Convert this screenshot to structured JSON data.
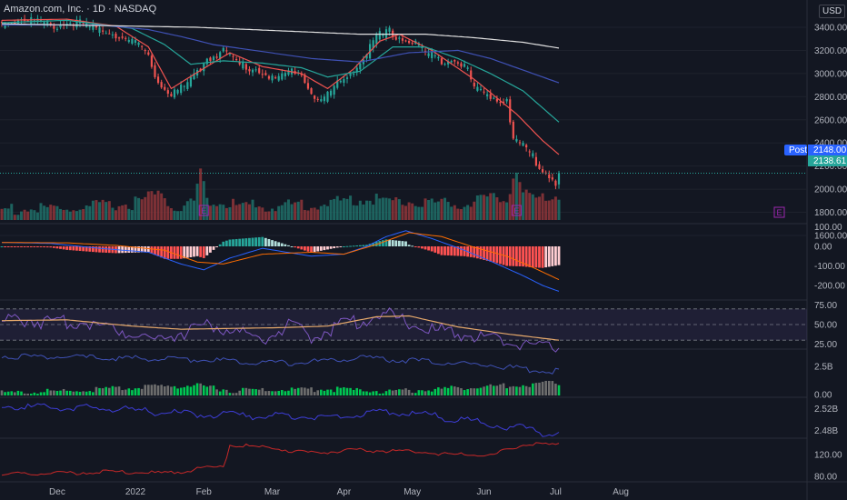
{
  "header": {
    "symbol_title": "Amazon.com, Inc.",
    "interval": "1D",
    "exchange": "NASDAQ",
    "currency": "USD"
  },
  "price_badges": {
    "post_label": "Post",
    "post_value": "2148.00",
    "last_value": "2138.61"
  },
  "earnings_marker": "E",
  "colors": {
    "bg": "#131722",
    "up": "#26a69a",
    "down": "#ef5350",
    "ma_fast": "#ef5350",
    "ma_mid": "#26a69a",
    "ma_slow": "#3f51b5",
    "ma_long": "#e0e0e0",
    "macd": "#2962ff",
    "signal": "#ff6d00",
    "rsi": "#7e57c2",
    "rsi_ma": "#e6a96b",
    "post_badge": "#2962ff",
    "last_badge": "#26a69a"
  },
  "chart_data": [
    {
      "type": "candlestick",
      "title": "Amazon.com, Inc. · 1D · NASDAQ",
      "x_ticks": [
        "Dec",
        "2022",
        "Feb",
        "Mar",
        "Apr",
        "May",
        "Jun",
        "Jul",
        "Aug"
      ],
      "y_ticks": [
        "3400.00",
        "3200.00",
        "3000.00",
        "2800.00",
        "2600.00",
        "2400.00",
        "2200.00",
        "2000.00",
        "1800.00",
        "1600.00"
      ],
      "ylim": [
        1600,
        3520
      ],
      "close_anchors": [
        [
          0,
          3450
        ],
        [
          6,
          3500
        ],
        [
          10,
          3480
        ],
        [
          16,
          3430
        ],
        [
          22,
          3470
        ],
        [
          27,
          3420
        ],
        [
          33,
          3390
        ],
        [
          39,
          3300
        ],
        [
          43,
          3250
        ],
        [
          45,
          3150
        ],
        [
          49,
          2900
        ],
        [
          52,
          2850
        ],
        [
          56,
          2900
        ],
        [
          60,
          3030
        ],
        [
          63,
          3150
        ],
        [
          68,
          3220
        ],
        [
          73,
          3100
        ],
        [
          77,
          3060
        ],
        [
          80,
          3050
        ],
        [
          84,
          2950
        ],
        [
          87,
          3020
        ],
        [
          91,
          3060
        ],
        [
          95,
          2850
        ],
        [
          98,
          2780
        ],
        [
          102,
          2900
        ],
        [
          106,
          3000
        ],
        [
          110,
          3110
        ],
        [
          113,
          3250
        ],
        [
          116,
          3350
        ],
        [
          119,
          3380
        ],
        [
          122,
          3330
        ],
        [
          125,
          3300
        ],
        [
          128,
          3270
        ],
        [
          131,
          3180
        ],
        [
          135,
          3140
        ],
        [
          139,
          3150
        ],
        [
          142,
          3100
        ],
        [
          145,
          2900
        ],
        [
          148,
          2850
        ],
        [
          152,
          2800
        ],
        [
          155,
          2800
        ],
        [
          157,
          2450
        ],
        [
          160,
          2400
        ],
        [
          163,
          2300
        ],
        [
          166,
          2170
        ],
        [
          168,
          2150
        ],
        [
          170,
          2060
        ],
        [
          171,
          2138
        ]
      ],
      "volume_anchors": [
        [
          0,
          0.25
        ],
        [
          20,
          0.25
        ],
        [
          40,
          0.35
        ],
        [
          49,
          0.55
        ],
        [
          52,
          0.3
        ],
        [
          56,
          0.28
        ],
        [
          59,
          0.4
        ],
        [
          61,
          0.95
        ],
        [
          62,
          0.75
        ],
        [
          64,
          0.35
        ],
        [
          80,
          0.3
        ],
        [
          100,
          0.35
        ],
        [
          112,
          0.45
        ],
        [
          120,
          0.4
        ],
        [
          140,
          0.35
        ],
        [
          155,
          0.45
        ],
        [
          158,
          1.0
        ],
        [
          160,
          0.5
        ],
        [
          163,
          0.45
        ],
        [
          171,
          0.5
        ]
      ],
      "moving_averages": [
        {
          "name": "MA fast",
          "anchors": [
            [
              0,
              3460
            ],
            [
              20,
              3470
            ],
            [
              35,
              3410
            ],
            [
              45,
              3230
            ],
            [
              52,
              2870
            ],
            [
              60,
              3010
            ],
            [
              70,
              3180
            ],
            [
              80,
              3060
            ],
            [
              92,
              3000
            ],
            [
              100,
              2870
            ],
            [
              108,
              3040
            ],
            [
              116,
              3280
            ],
            [
              122,
              3340
            ],
            [
              132,
              3200
            ],
            [
              145,
              2950
            ],
            [
              158,
              2650
            ],
            [
              166,
              2420
            ],
            [
              171,
              2300
            ]
          ]
        },
        {
          "name": "MA mid",
          "anchors": [
            [
              0,
              3440
            ],
            [
              20,
              3460
            ],
            [
              40,
              3390
            ],
            [
              50,
              3250
            ],
            [
              58,
              3080
            ],
            [
              68,
              3110
            ],
            [
              80,
              3090
            ],
            [
              92,
              3050
            ],
            [
              100,
              2970
            ],
            [
              110,
              3020
            ],
            [
              120,
              3230
            ],
            [
              130,
              3230
            ],
            [
              140,
              3130
            ],
            [
              150,
              3000
            ],
            [
              160,
              2850
            ],
            [
              171,
              2580
            ]
          ]
        },
        {
          "name": "MA slow",
          "anchors": [
            [
              0,
              3420
            ],
            [
              30,
              3420
            ],
            [
              45,
              3380
            ],
            [
              55,
              3320
            ],
            [
              65,
              3250
            ],
            [
              80,
              3190
            ],
            [
              95,
              3130
            ],
            [
              110,
              3100
            ],
            [
              125,
              3180
            ],
            [
              140,
              3200
            ],
            [
              150,
              3130
            ],
            [
              160,
              3030
            ],
            [
              171,
              2920
            ]
          ]
        },
        {
          "name": "MA long",
          "anchors": [
            [
              0,
              3430
            ],
            [
              60,
              3400
            ],
            [
              110,
              3340
            ],
            [
              130,
              3340
            ],
            [
              145,
              3310
            ],
            [
              160,
              3270
            ],
            [
              171,
              3220
            ]
          ]
        }
      ]
    },
    {
      "type": "line",
      "name": "MACD",
      "y_ticks": [
        "100.00",
        "0.00",
        "-100.00",
        "-200.00"
      ],
      "ylim": [
        -260,
        120
      ],
      "series": [
        {
          "name": "MACD",
          "anchors": [
            [
              0,
              20
            ],
            [
              15,
              15
            ],
            [
              30,
              -10
            ],
            [
              45,
              -30
            ],
            [
              55,
              -90
            ],
            [
              62,
              -120
            ],
            [
              70,
              -60
            ],
            [
              80,
              -10
            ],
            [
              95,
              -50
            ],
            [
              105,
              -40
            ],
            [
              112,
              0
            ],
            [
              118,
              50
            ],
            [
              124,
              80
            ],
            [
              132,
              40
            ],
            [
              142,
              -20
            ],
            [
              152,
              -90
            ],
            [
              160,
              -150
            ],
            [
              166,
              -200
            ],
            [
              171,
              -230
            ]
          ]
        },
        {
          "name": "Signal",
          "anchors": [
            [
              0,
              20
            ],
            [
              20,
              18
            ],
            [
              35,
              5
            ],
            [
              50,
              -20
            ],
            [
              60,
              -80
            ],
            [
              68,
              -90
            ],
            [
              80,
              -40
            ],
            [
              95,
              -30
            ],
            [
              105,
              -40
            ],
            [
              115,
              10
            ],
            [
              125,
              70
            ],
            [
              135,
              50
            ],
            [
              145,
              -5
            ],
            [
              155,
              -50
            ],
            [
              162,
              -100
            ],
            [
              171,
              -170
            ]
          ]
        }
      ]
    },
    {
      "type": "line",
      "name": "RSI",
      "y_ticks": [
        "75.00",
        "50.00",
        "25.00"
      ],
      "ylim": [
        15,
        82
      ],
      "band": [
        30,
        70
      ],
      "series": [
        {
          "name": "RSI",
          "anchors": [
            [
              0,
              58
            ],
            [
              8,
              62
            ],
            [
              16,
              55
            ],
            [
              24,
              60
            ],
            [
              32,
              52
            ],
            [
              40,
              45
            ],
            [
              48,
              35
            ],
            [
              52,
              42
            ],
            [
              58,
              48
            ],
            [
              64,
              55
            ],
            [
              72,
              45
            ],
            [
              80,
              38
            ],
            [
              88,
              52
            ],
            [
              95,
              40
            ],
            [
              104,
              55
            ],
            [
              112,
              62
            ],
            [
              118,
              68
            ],
            [
              124,
              58
            ],
            [
              132,
              48
            ],
            [
              140,
              44
            ],
            [
              148,
              38
            ],
            [
              156,
              32
            ],
            [
              162,
              30
            ],
            [
              168,
              25
            ],
            [
              171,
              28
            ]
          ]
        },
        {
          "name": "RSI MA",
          "anchors": [
            [
              0,
              55
            ],
            [
              20,
              56
            ],
            [
              40,
              48
            ],
            [
              55,
              44
            ],
            [
              70,
              45
            ],
            [
              85,
              46
            ],
            [
              100,
              48
            ],
            [
              115,
              60
            ],
            [
              125,
              61
            ],
            [
              140,
              47
            ],
            [
              155,
              38
            ],
            [
              171,
              30
            ]
          ]
        }
      ]
    },
    {
      "type": "line",
      "name": "Volume indicator",
      "y_ticks": [
        "2.5B",
        "0.00"
      ],
      "series": [
        {
          "name": "line",
          "anchors": [
            [
              0,
              2.8
            ],
            [
              30,
              2.75
            ],
            [
              60,
              2.7
            ],
            [
              90,
              2.6
            ],
            [
              110,
              2.75
            ],
            [
              130,
              2.65
            ],
            [
              150,
              2.55
            ],
            [
              160,
              2.45
            ],
            [
              168,
              2.35
            ],
            [
              171,
              2.4
            ]
          ]
        }
      ],
      "bars_anchors": [
        [
          0,
          0.2
        ],
        [
          20,
          0.35
        ],
        [
          40,
          0.6
        ],
        [
          60,
          0.8
        ],
        [
          70,
          0.4
        ],
        [
          100,
          0.5
        ],
        [
          120,
          0.3
        ],
        [
          140,
          0.6
        ],
        [
          158,
          0.8
        ],
        [
          171,
          1.0
        ]
      ]
    },
    {
      "type": "line",
      "name": "Indicator",
      "y_ticks": [
        "2.52B",
        "2.48B"
      ],
      "series": [
        {
          "name": "line",
          "anchors": [
            [
              0,
              2.527
            ],
            [
              30,
              2.524
            ],
            [
              60,
              2.515
            ],
            [
              90,
              2.512
            ],
            [
              110,
              2.514
            ],
            [
              120,
              2.52
            ],
            [
              140,
              2.508
            ],
            [
              150,
              2.5
            ],
            [
              160,
              2.495
            ],
            [
              168,
              2.486
            ],
            [
              171,
              2.489
            ]
          ]
        }
      ]
    },
    {
      "type": "line",
      "name": "Indicator",
      "y_ticks": [
        "120.00",
        "80.00"
      ],
      "series": [
        {
          "name": "line",
          "anchors": [
            [
              0,
              85
            ],
            [
              30,
              90
            ],
            [
              50,
              88
            ],
            [
              60,
              95
            ],
            [
              68,
              100
            ],
            [
              70,
              140
            ],
            [
              80,
              135
            ],
            [
              95,
              125
            ],
            [
              110,
              130
            ],
            [
              125,
              128
            ],
            [
              140,
              122
            ],
            [
              150,
              120
            ],
            [
              160,
              140
            ],
            [
              171,
              140
            ]
          ]
        }
      ]
    }
  ]
}
